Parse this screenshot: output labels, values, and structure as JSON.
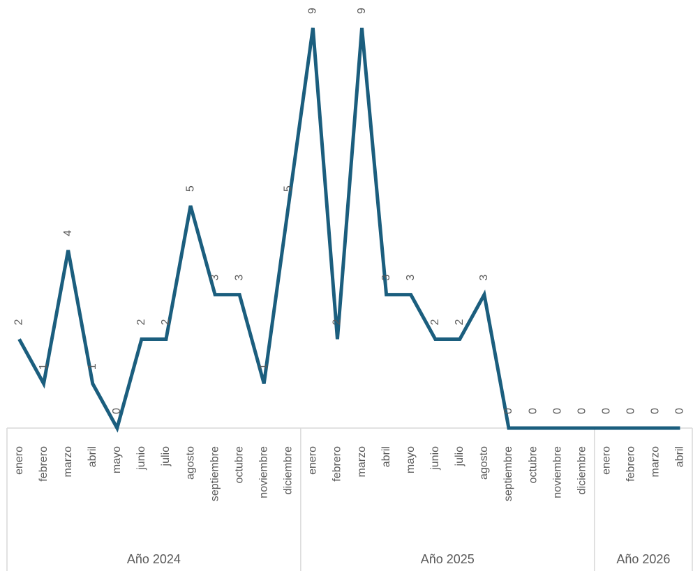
{
  "chart_data": {
    "type": "line",
    "groups": [
      {
        "label": "Año 2024",
        "categories": [
          "enero",
          "febrero",
          "marzo",
          "abril",
          "mayo",
          "junio",
          "julio",
          "agosto",
          "septiembre",
          "octubre",
          "noviembre",
          "diciembre"
        ]
      },
      {
        "label": "Año 2025",
        "categories": [
          "enero",
          "febrero",
          "marzo",
          "abril",
          "mayo",
          "junio",
          "julio",
          "agosto",
          "septiembre",
          "octubre",
          "noviembre",
          "diciembre"
        ]
      },
      {
        "label": "Año 2026",
        "categories": [
          "enero",
          "febrero",
          "marzo",
          "abril"
        ]
      }
    ],
    "values": [
      2,
      1,
      4,
      1,
      0,
      2,
      2,
      5,
      3,
      3,
      1,
      5,
      9,
      2,
      9,
      3,
      3,
      2,
      2,
      3,
      0,
      0,
      0,
      0,
      0,
      0,
      0,
      0
    ],
    "color": "#1b5e7e"
  }
}
